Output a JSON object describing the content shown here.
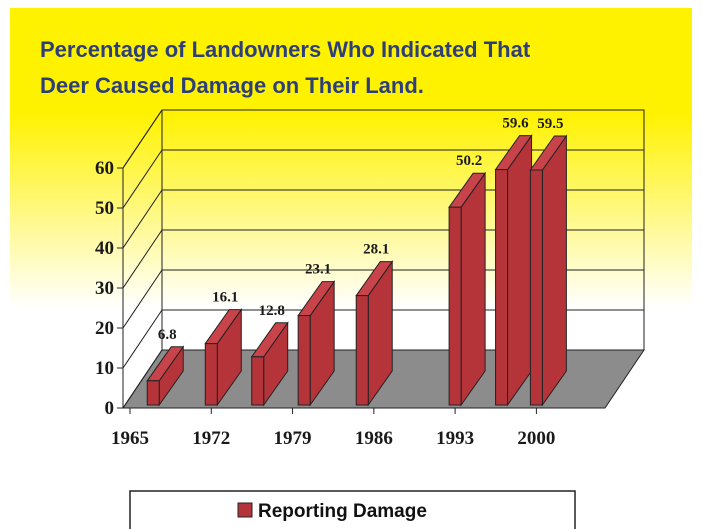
{
  "chart_data": {
    "type": "bar3d",
    "title_lines": [
      "Percentage of Landowners Who Indicated That",
      "Deer Caused Damage on Their Land."
    ],
    "x": [
      1967,
      1972,
      1976,
      1980,
      1985,
      1993,
      1997,
      2000
    ],
    "series": [
      {
        "name": "Reporting Damage",
        "color": "#b5343a",
        "values": [
          6.8,
          16.1,
          12.8,
          23.1,
          28.1,
          50.2,
          59.6,
          59.5
        ]
      }
    ],
    "xlim": [
      1965,
      2001
    ],
    "xticks": [
      1965,
      1972,
      1979,
      1986,
      1993,
      2000
    ],
    "ylim": [
      0,
      60
    ],
    "yticks": [
      0,
      10,
      20,
      30,
      40,
      50,
      60
    ],
    "grid": true,
    "legend": "bottom"
  }
}
